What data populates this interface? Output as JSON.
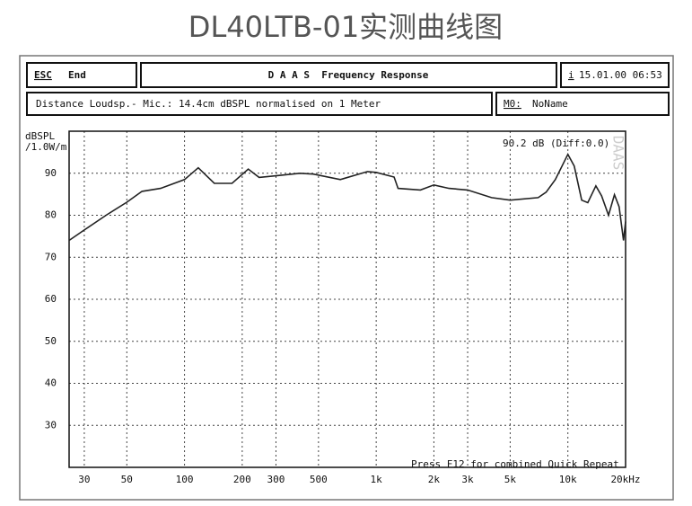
{
  "header": {
    "esc": "ESC",
    "end": "End",
    "app": "D A A S  Frequency Response",
    "info_icon": "i",
    "datetime": "15.01.00 06:53",
    "description": "Distance Loudsp.- Mic.: 14.4cm dBSPL normalised on 1 Meter",
    "memory_label": "M0:",
    "memory_name": "NoName"
  },
  "chart_data": {
    "type": "line",
    "title": "DL40LTB-01实测曲线图",
    "y_label": [
      "dBSPL",
      "/1.0W/m"
    ],
    "annotations": [
      "90.2 dB (Diff:0.0)",
      "Press F12 for combined Quick Repeat",
      "DAAS"
    ],
    "x": [
      25,
      30,
      39,
      50,
      60,
      75,
      100,
      118,
      143,
      177,
      215,
      245,
      300,
      400,
      470,
      650,
      900,
      1000,
      1240,
      1300,
      1700,
      2000,
      2400,
      3000,
      4000,
      5000,
      7000,
      7700,
      8600,
      10000,
      10800,
      11800,
      12700,
      14000,
      15000,
      16300,
      17500,
      18500,
      19500,
      20000
    ],
    "values": [
      74,
      76.5,
      80,
      83.1,
      85.7,
      86.4,
      88.5,
      91.3,
      87.6,
      87.6,
      91,
      89,
      89.4,
      90,
      89.8,
      88.5,
      90.4,
      90.2,
      89.1,
      86.4,
      86,
      87.2,
      86.4,
      86,
      84.2,
      83.6,
      84.2,
      85.5,
      88.5,
      94.5,
      91.7,
      83.6,
      83,
      87,
      84.6,
      80,
      84.9,
      82,
      74,
      78.5
    ],
    "color": "#222222",
    "xscale": "log",
    "xlim": [
      25,
      20000
    ],
    "xticks": [
      30,
      50,
      100,
      200,
      300,
      500,
      {
        "value": 1000,
        "label": "1k"
      },
      {
        "value": 2000,
        "label": "2k"
      },
      {
        "value": 3000,
        "label": "3k"
      },
      {
        "value": 5000,
        "label": "5k"
      },
      {
        "value": 10000,
        "label": "10k"
      },
      {
        "value": 20000,
        "label": "20kHz"
      }
    ],
    "ylim": [
      20,
      100
    ],
    "yticks": [
      30,
      40,
      50,
      60,
      70,
      80,
      90
    ],
    "grid": true
  }
}
